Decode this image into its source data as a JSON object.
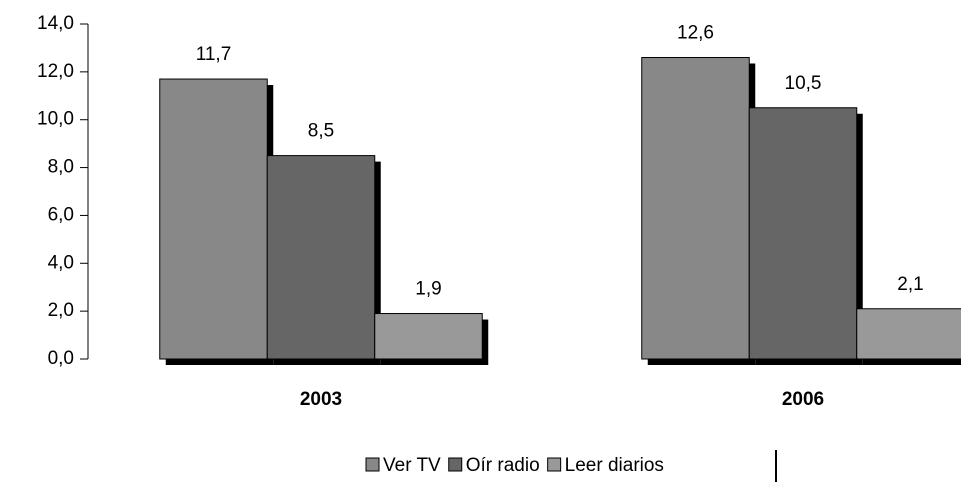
{
  "chart_data": {
    "type": "bar",
    "categories": [
      "2003",
      "2006"
    ],
    "series": [
      {
        "name": "Ver TV",
        "color": "#888888",
        "values": [
          11.7,
          12.6
        ],
        "value_labels": [
          "11,7",
          "12,6"
        ]
      },
      {
        "name": "Oír radio",
        "color": "#666666",
        "values": [
          8.5,
          10.5
        ],
        "value_labels": [
          "8,5",
          "10,5"
        ]
      },
      {
        "name": "Leer diarios",
        "color": "#999999",
        "values": [
          1.9,
          2.1
        ],
        "value_labels": [
          "1,9",
          "2,1"
        ]
      }
    ],
    "ylim": [
      0,
      14
    ],
    "yticks": [
      {
        "value": 0,
        "label": "0,0"
      },
      {
        "value": 2,
        "label": "2,0"
      },
      {
        "value": 4,
        "label": "4,0"
      },
      {
        "value": 6,
        "label": "6,0"
      },
      {
        "value": 8,
        "label": "8,0"
      },
      {
        "value": 10,
        "label": "10,0"
      },
      {
        "value": 12,
        "label": "12,0"
      },
      {
        "value": 14,
        "label": "14,0"
      }
    ],
    "legend": "bottom"
  }
}
